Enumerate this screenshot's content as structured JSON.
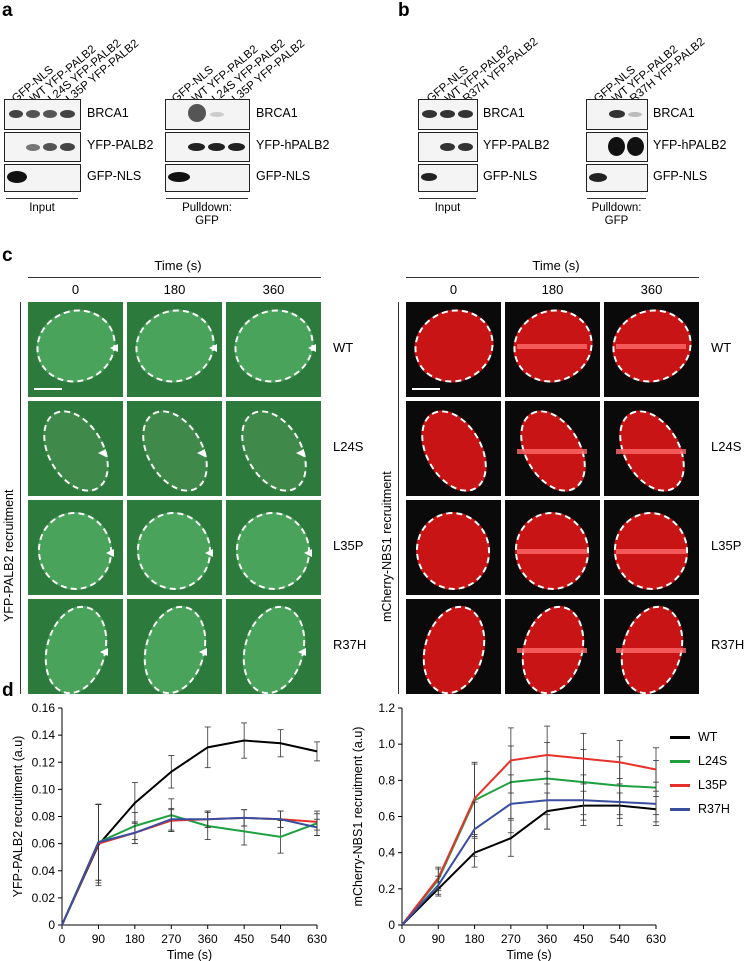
{
  "panels": {
    "a": "a",
    "b": "b",
    "c": "c",
    "d": "d"
  },
  "panel_a": {
    "input_lanes": [
      "GFP-NLS",
      "WT YFP-PALB2",
      "L24S YFP-PALB2",
      "L35P YFP-PALB2"
    ],
    "pulldown_lanes": [
      "GFP-NLS",
      "WT YFP-PALB2",
      "L24S YFP-PALB2",
      "L35P YFP-PALB2"
    ],
    "input_rows": [
      "BRCA1",
      "YFP-PALB2",
      "GFP-NLS"
    ],
    "pulldown_rows": [
      "BRCA1",
      "YFP-hPALB2",
      "GFP-NLS"
    ],
    "input_label": "Input",
    "pulldown_label_1": "Pulldown:",
    "pulldown_label_2": "GFP"
  },
  "panel_b": {
    "input_lanes": [
      "GFP-NLS",
      "WT YFP-PALB2",
      "R37H YFP-PALB2"
    ],
    "pulldown_lanes": [
      "GFP-NLS",
      "WT YFP-PALB2",
      "R37H YFP-PALB2"
    ],
    "input_rows": [
      "BRCA1",
      "YFP-PALB2",
      "GFP-NLS"
    ],
    "pulldown_rows": [
      "BRCA1",
      "YFP-hPALB2",
      "GFP-NLS"
    ],
    "input_label": "Input",
    "pulldown_label_1": "Pulldown:",
    "pulldown_label_2": "GFP"
  },
  "panel_c": {
    "time_title": "Time (s)",
    "times": [
      "0",
      "180",
      "360"
    ],
    "rows": [
      "WT",
      "L24S",
      "L35P",
      "R37H"
    ],
    "left_ylabel": "YFP-PALB2 recruitment",
    "right_ylabel": "mCherry-NBS1 recruitment"
  },
  "chart_data": [
    {
      "type": "line",
      "xlabel": "Time (s)",
      "ylabel": "YFP-PALB2 recruitment (a.u)",
      "x": [
        0,
        90,
        180,
        270,
        360,
        450,
        540,
        630
      ],
      "ylim": [
        0,
        0.16
      ],
      "yticks": [
        "0",
        "0.02",
        "0.04",
        "0.06",
        "0.08",
        "0.10",
        "0.12",
        "0.14",
        "0.16"
      ],
      "series": [
        {
          "name": "WT",
          "color": "#000000",
          "values": [
            0,
            0.059,
            0.09,
            0.113,
            0.131,
            0.136,
            0.134,
            0.128
          ],
          "err": [
            0,
            0.03,
            0.015,
            0.012,
            0.015,
            0.013,
            0.01,
            0.007
          ]
        },
        {
          "name": "L24S",
          "color": "#1fa040",
          "values": [
            0,
            0.061,
            0.073,
            0.081,
            0.073,
            0.069,
            0.065,
            0.075
          ],
          "err": [
            0,
            0.028,
            0.01,
            0.012,
            0.01,
            0.01,
            0.012,
            0.009
          ]
        },
        {
          "name": "L35P",
          "color": "#e8312a",
          "values": [
            0,
            0.06,
            0.068,
            0.077,
            0.078,
            0.079,
            0.078,
            0.076
          ],
          "err": [
            0,
            0.029,
            0.008,
            0.008,
            0.006,
            0.006,
            0.006,
            0.006
          ]
        },
        {
          "name": "R37H",
          "color": "#3a4ea0",
          "values": [
            0,
            0.061,
            0.068,
            0.078,
            0.078,
            0.079,
            0.078,
            0.072
          ],
          "err": [
            0,
            0.028,
            0.008,
            0.008,
            0.006,
            0.006,
            0.006,
            0.006
          ]
        }
      ]
    },
    {
      "type": "line",
      "xlabel": "Time (s)",
      "ylabel": "mCherry-NBS1 recruitment (a.u)",
      "x": [
        0,
        90,
        180,
        270,
        360,
        450,
        540,
        630
      ],
      "ylim": [
        0,
        1.2
      ],
      "yticks": [
        "0",
        "0.2",
        "0.4",
        "0.6",
        "0.8",
        "1.0",
        "1.2"
      ],
      "series": [
        {
          "name": "WT",
          "color": "#000000",
          "values": [
            0,
            0.2,
            0.4,
            0.48,
            0.63,
            0.66,
            0.66,
            0.64
          ],
          "err": [
            0,
            0.04,
            0.08,
            0.1,
            0.1,
            0.08,
            0.07,
            0.07
          ]
        },
        {
          "name": "L24S",
          "color": "#1fa040",
          "values": [
            0,
            0.25,
            0.69,
            0.79,
            0.81,
            0.79,
            0.77,
            0.76
          ],
          "err": [
            0,
            0.06,
            0.2,
            0.2,
            0.2,
            0.18,
            0.16,
            0.15
          ]
        },
        {
          "name": "L35P",
          "color": "#e8312a",
          "values": [
            0,
            0.26,
            0.7,
            0.91,
            0.94,
            0.92,
            0.9,
            0.86
          ],
          "err": [
            0,
            0.06,
            0.2,
            0.18,
            0.16,
            0.14,
            0.12,
            0.12
          ]
        },
        {
          "name": "R37H",
          "color": "#3a4ea0",
          "values": [
            0,
            0.22,
            0.53,
            0.67,
            0.69,
            0.69,
            0.68,
            0.67
          ],
          "err": [
            0,
            0.05,
            0.15,
            0.16,
            0.16,
            0.14,
            0.13,
            0.12
          ]
        }
      ]
    }
  ],
  "legend": [
    "WT",
    "L24S",
    "L35P",
    "R37H"
  ]
}
